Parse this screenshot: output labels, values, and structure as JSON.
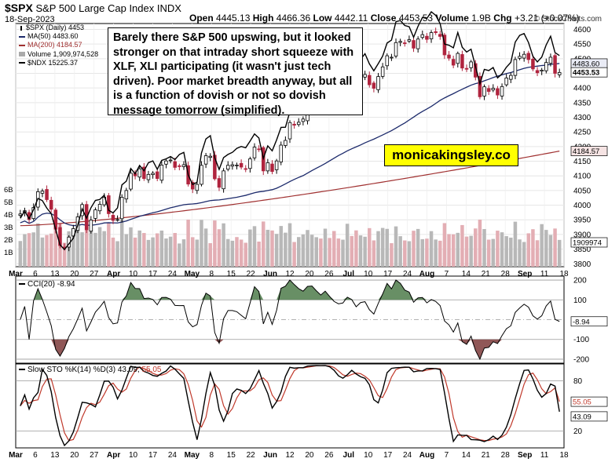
{
  "header": {
    "symbol": "$SPX",
    "description": "S&P 500 Large Cap Index INDX",
    "date": "18-Sep-2023",
    "open_label": "Open",
    "open": "4445.13",
    "high_label": "High",
    "high": "4466.36",
    "low_label": "Low",
    "low": "4442.11",
    "close_label": "Close",
    "close": "4453.53",
    "volume_label": "Volume",
    "volume": "1.9B",
    "chg_label": "Chg",
    "chg": "+3.21 (+0.07%)",
    "watermark": "© StockCharts.com"
  },
  "legend": {
    "price": "$SPX (Daily) 4453",
    "ma50": "MA(50) 4483.60",
    "ma200": "MA(200) 4184.57",
    "volume": "Volume 1,909,974,528",
    "ndx": "$NDX 15225.37"
  },
  "annotation": "Barely there S&P 500 upswing, but it looked stronger on that intraday short squeeze with XLF, XLI participating (it wasn't just tech driven). Poor market breadth anyway, but all is a function of dovish or not so dovish message tomorrow (simplified).",
  "brand": "monicakingsley.co",
  "indicators": {
    "cci_label": "CCI(20) -8.94",
    "sto_label": "Slow STO %K(14) %D(3)",
    "sto_k": "43.09,",
    "sto_d": "55.05"
  },
  "colors": {
    "up": "#000000",
    "down": "#b0243e",
    "ma50": "#1c2a6b",
    "ma200": "#a03030",
    "ndx": "#000000",
    "cci_fill_pos": "#4e7b4a",
    "cci_fill_neg": "#7d3a3a",
    "sto_k": "#000000",
    "sto_d": "#c0392b"
  },
  "chart_data": {
    "type": "candlestick",
    "x_tick_labels": [
      "Mar",
      "6",
      "13",
      "20",
      "27",
      "Apr",
      "10",
      "17",
      "24",
      "May",
      "8",
      "15",
      "22",
      "Jun",
      "12",
      "20",
      "26",
      "Jul",
      "10",
      "17",
      "24",
      "Aug",
      "7",
      "14",
      "21",
      "28",
      "Sep",
      "11",
      "18"
    ],
    "price_axis": {
      "ylim": [
        3790,
        4620
      ],
      "ticks": [
        "4600",
        "4550",
        "4500",
        "4450",
        "4400",
        "4350",
        "4300",
        "4250",
        "4200",
        "4150",
        "4100",
        "4050",
        "4000",
        "3950",
        "3900",
        "3850",
        "3800"
      ]
    },
    "price_tags": [
      "4483.60",
      "4453.53",
      "4184.57",
      "1909974"
    ],
    "volume_axis_ticks": [
      "6B",
      "5B",
      "4B",
      "3B",
      "2B",
      "1B"
    ],
    "cci_axis": {
      "ylim": [
        -220,
        220
      ],
      "ticks": [
        "200",
        "100",
        "0",
        "-100",
        "-200"
      ],
      "tag": "-8.94"
    },
    "sto_axis": {
      "ylim": [
        0,
        100
      ],
      "ticks": [
        "80",
        "20"
      ],
      "tags": [
        "55.05",
        "43.09"
      ]
    },
    "close": [
      3970,
      3981,
      3951,
      3992,
      4046,
      4048,
      4019,
      3986,
      3918,
      3862,
      3856,
      3891,
      3920,
      3960,
      4002,
      3916,
      3949,
      3984,
      4003,
      4027,
      3971,
      3948,
      3951,
      4027,
      4050,
      4109,
      4100,
      4124,
      4091,
      4105,
      4109,
      4091,
      4137,
      4151,
      4154,
      4129,
      4133,
      4138,
      4072,
      4055,
      4071,
      4136,
      4169,
      4167,
      4090,
      4061,
      4117,
      4136,
      4138,
      4137,
      4130,
      4124,
      4158,
      4198,
      4192,
      4117,
      4145,
      4115,
      4151,
      4205,
      4221,
      4282,
      4273,
      4283,
      4294,
      4338,
      4369,
      4373,
      4372,
      4425,
      4410,
      4388,
      4381,
      4398,
      4455,
      4450,
      4409,
      4439,
      4446,
      4411,
      4399,
      4439,
      4472,
      4510,
      4505,
      4555,
      4559,
      4554,
      4565,
      4536,
      4567,
      4582,
      4566,
      4589,
      4589,
      4576,
      4513,
      4502,
      4478,
      4518,
      4468,
      4464,
      4489,
      4437,
      4370,
      4404,
      4388,
      4399,
      4376,
      4405,
      4434,
      4443,
      4497,
      4508,
      4515,
      4497,
      4465,
      4452,
      4461,
      4487,
      4505,
      4450,
      4453
    ],
    "ma50_end": 4483.6,
    "ma200_end": 4184.57,
    "volume_end": 1909974528,
    "cci_end": -8.94,
    "sto_k_end": 43.09,
    "sto_d_end": 55.05
  }
}
